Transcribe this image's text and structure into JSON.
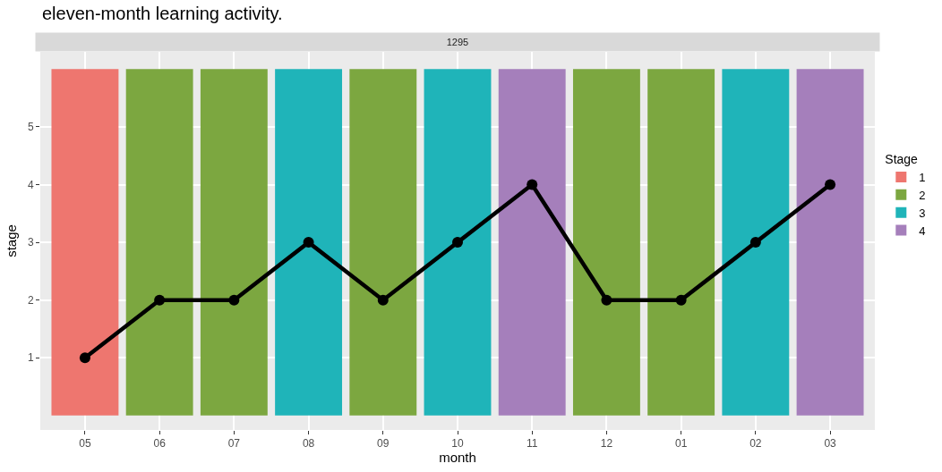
{
  "chart_data": {
    "type": "bar",
    "title": "eleven-month learning activity.",
    "subtitle": "1295",
    "xlabel": "month",
    "ylabel": "stage",
    "legend_title": "Stage",
    "categories": [
      "05",
      "06",
      "07",
      "08",
      "09",
      "10",
      "11",
      "12",
      "01",
      "02",
      "03"
    ],
    "series": [
      {
        "name": "1",
        "color": "#ee766f",
        "values": [
          6,
          null,
          null,
          null,
          null,
          null,
          null,
          null,
          null,
          null,
          null
        ]
      },
      {
        "name": "2",
        "color": "#7ca740",
        "values": [
          null,
          6,
          6,
          null,
          6,
          null,
          null,
          6,
          6,
          null,
          null
        ]
      },
      {
        "name": "3",
        "color": "#1fb4b9",
        "values": [
          null,
          null,
          null,
          6,
          null,
          6,
          null,
          null,
          null,
          6,
          null
        ]
      },
      {
        "name": "4",
        "color": "#a57fbb",
        "values": [
          null,
          null,
          null,
          null,
          null,
          null,
          6,
          null,
          null,
          null,
          6
        ]
      },
      {
        "type": "line",
        "color": "#000000",
        "marker": "circle",
        "values": [
          1,
          2,
          2,
          3,
          2,
          3,
          4,
          2,
          2,
          3,
          4
        ]
      }
    ],
    "ylim": [
      -0.25,
      6.3
    ],
    "yticks": [
      1,
      2,
      3,
      4,
      5
    ],
    "grid": true,
    "legend": "right"
  }
}
